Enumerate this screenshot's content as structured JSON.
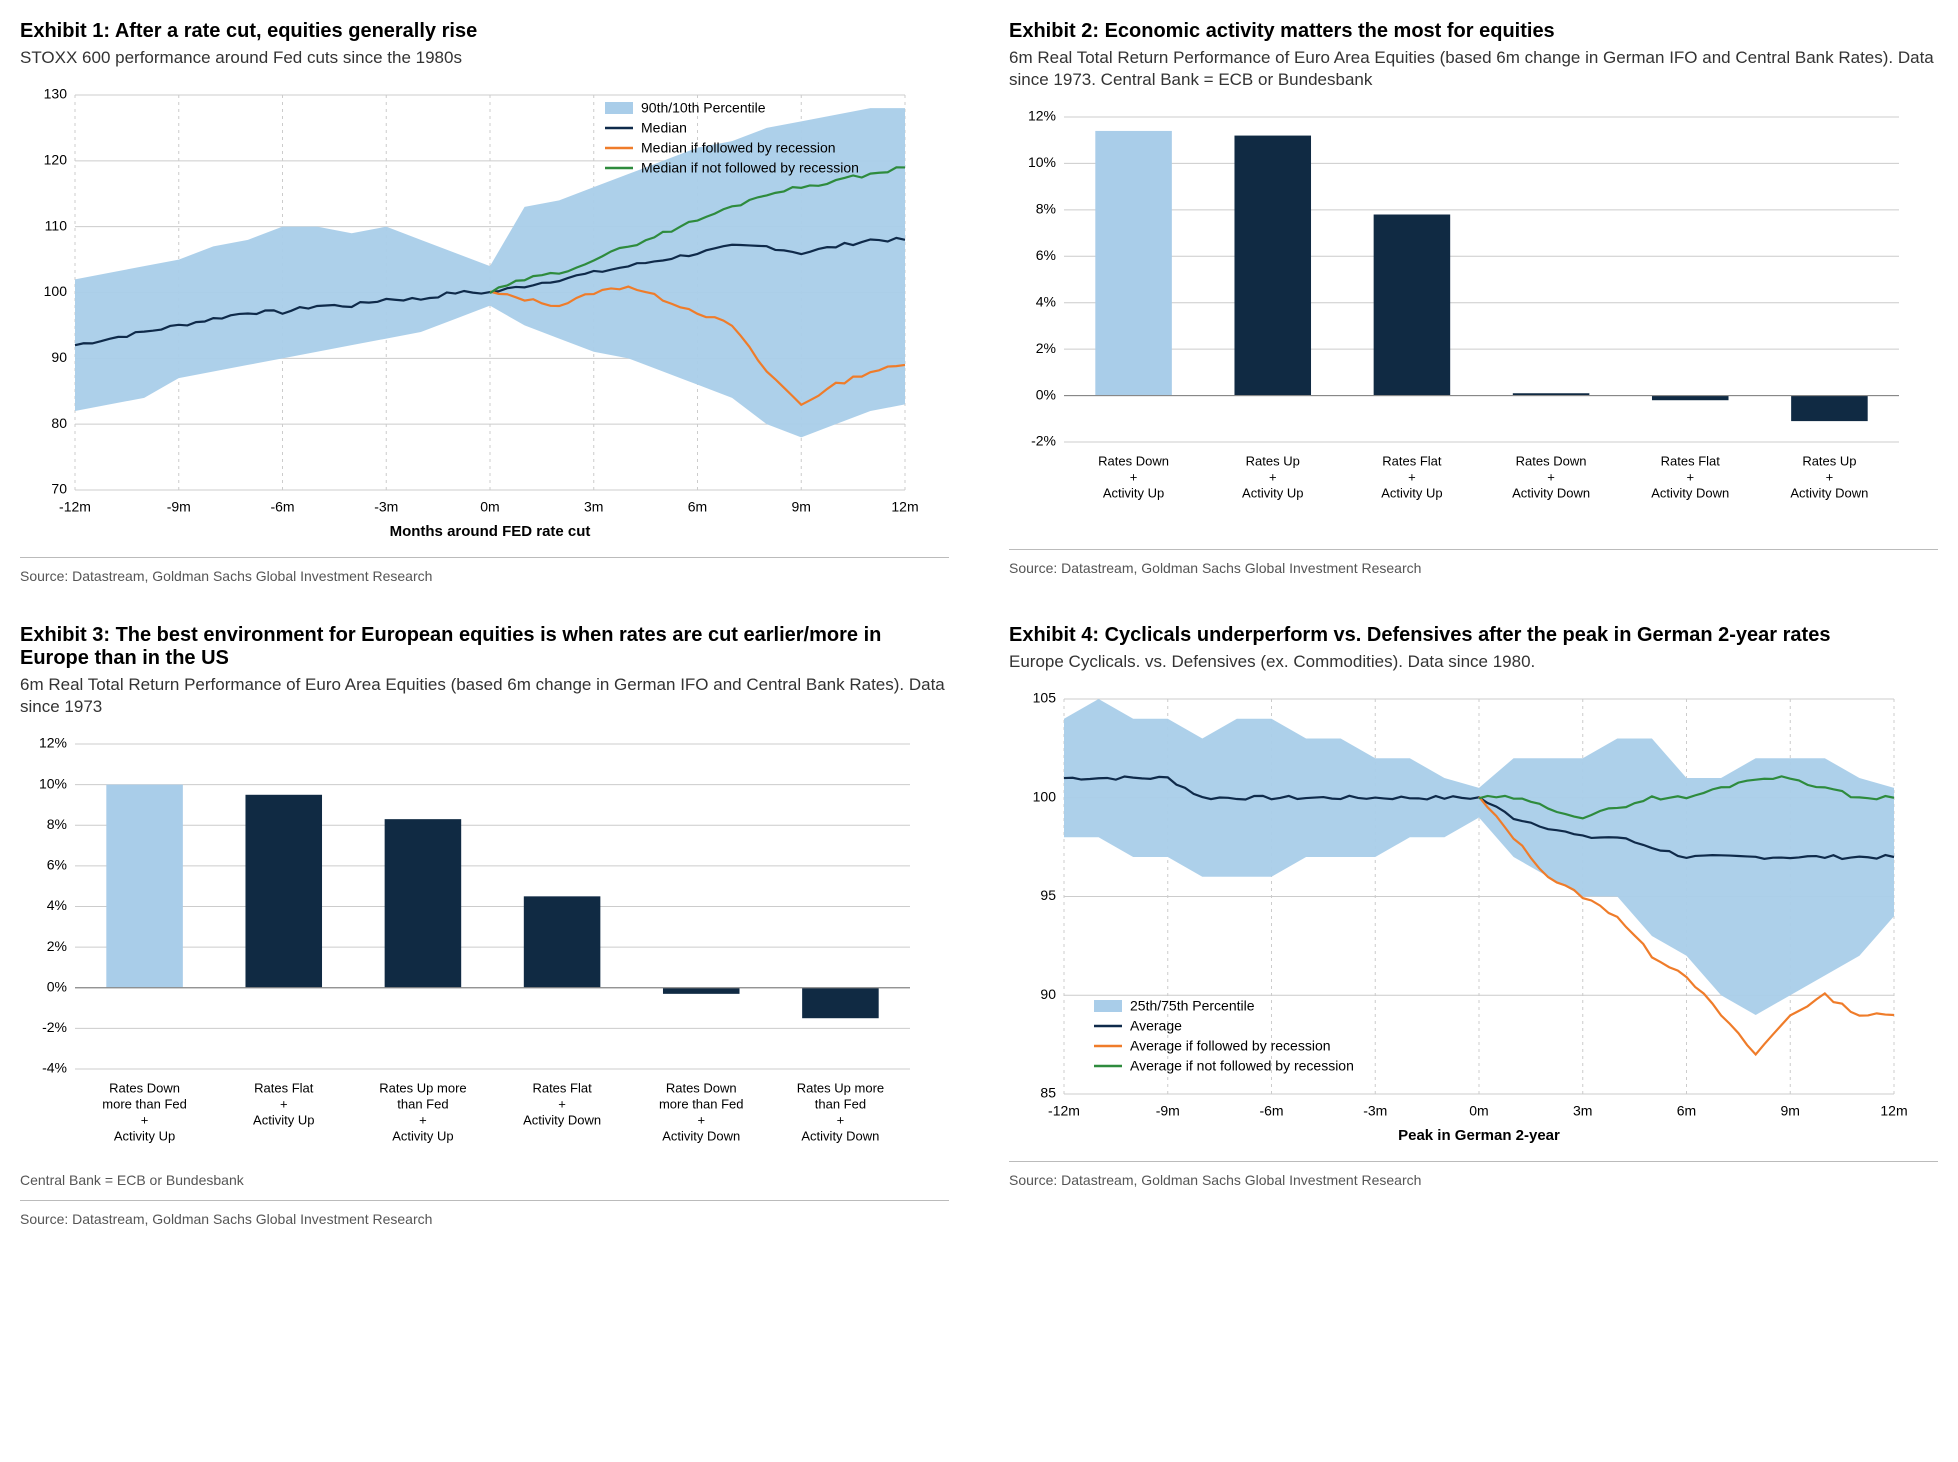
{
  "colors": {
    "band": "#a9cde9",
    "median": "#0f2a4a",
    "recession": "#ef7c2a",
    "norecession": "#2e8b3d",
    "barHighlight": "#a9cde9",
    "barDark": "#102a43",
    "grid": "#cccccc",
    "axis": "#000000",
    "bg": "#ffffff"
  },
  "ex1": {
    "title": "Exhibit 1: After a rate cut, equities generally rise",
    "subtitle": "STOXX 600 performance around Fed cuts since the 1980s",
    "source": "Source: Datastream, Goldman Sachs Global Investment Research",
    "type": "line_band",
    "xlim": [
      -12,
      12
    ],
    "ylim": [
      70,
      130
    ],
    "ytick_step": 10,
    "xtick_step": 3,
    "xlabel": "Months around FED rate cut",
    "xtick_labels": [
      "-12m",
      "-9m",
      "-6m",
      "-3m",
      "0m",
      "3m",
      "6m",
      "9m",
      "12m"
    ],
    "legend": [
      {
        "label": "90th/10th Percentile",
        "type": "band",
        "color": "#a9cde9"
      },
      {
        "label": "Median",
        "type": "line",
        "color": "#0f2a4a"
      },
      {
        "label": "Median if followed by recession",
        "type": "line",
        "color": "#ef7c2a"
      },
      {
        "label": "Median if not followed by recession",
        "type": "line",
        "color": "#2e8b3d"
      }
    ],
    "x": [
      -12,
      -11,
      -10,
      -9,
      -8,
      -7,
      -6,
      -5,
      -4,
      -3,
      -2,
      -1,
      0,
      1,
      2,
      3,
      4,
      5,
      6,
      7,
      8,
      9,
      10,
      11,
      12
    ],
    "band_upper": [
      102,
      103,
      104,
      105,
      107,
      108,
      110,
      110,
      109,
      110,
      108,
      106,
      104,
      113,
      114,
      116,
      118,
      120,
      122,
      123,
      125,
      126,
      127,
      128,
      128
    ],
    "band_lower": [
      82,
      83,
      84,
      87,
      88,
      89,
      90,
      91,
      92,
      93,
      94,
      96,
      98,
      95,
      93,
      91,
      90,
      88,
      86,
      84,
      80,
      78,
      80,
      82,
      83
    ],
    "median": [
      92,
      93,
      94,
      95,
      96,
      97,
      97,
      98,
      98,
      99,
      99,
      100,
      100,
      101,
      102,
      103,
      104,
      105,
      106,
      107,
      107,
      106,
      107,
      108,
      108
    ],
    "recession": [
      null,
      null,
      null,
      null,
      null,
      null,
      null,
      null,
      null,
      null,
      null,
      null,
      100,
      99,
      98,
      100,
      101,
      99,
      97,
      95,
      88,
      83,
      86,
      88,
      89
    ],
    "norecession": [
      null,
      null,
      null,
      null,
      null,
      null,
      null,
      null,
      null,
      null,
      null,
      null,
      100,
      102,
      103,
      105,
      107,
      109,
      111,
      113,
      115,
      116,
      117,
      118,
      119
    ],
    "line_width": 2.2,
    "title_fontsize": 20,
    "label_fontsize": 15
  },
  "ex2": {
    "title": "Exhibit 2: Economic activity matters the most for equities",
    "subtitle": "6m Real Total Return Performance of Euro Area Equities (based 6m change in German IFO and Central Bank Rates). Data since 1973. Central Bank = ECB or Bundesbank",
    "source": "Source: Datastream, Goldman Sachs Global Investment Research",
    "type": "bar",
    "ylim": [
      -2,
      12
    ],
    "ytick_step": 2,
    "y_suffix": "%",
    "bar_width": 0.55,
    "categories": [
      "Rates Down\n+\nActivity Up",
      "Rates Up\n+\nActivity Up",
      "Rates Flat\n+\nActivity Up",
      "Rates Down\n+\nActivity Down",
      "Rates Flat\n+\nActivity Down",
      "Rates Up\n+\nActivity Down"
    ],
    "values": [
      11.4,
      11.2,
      7.8,
      0.1,
      -0.2,
      -1.1
    ],
    "bar_colors": [
      "#a9cde9",
      "#102a43",
      "#102a43",
      "#102a43",
      "#102a43",
      "#102a43"
    ]
  },
  "ex3": {
    "title": "Exhibit 3: The best environment for European equities is when rates are cut earlier/more in Europe than in the US",
    "subtitle": "6m Real Total Return Performance of Euro Area Equities (based 6m change in German IFO and Central Bank Rates). Data since 1973",
    "note": "Central Bank = ECB or Bundesbank",
    "source": "Source: Datastream, Goldman Sachs Global Investment Research",
    "type": "bar",
    "ylim": [
      -4,
      12
    ],
    "ytick_step": 2,
    "y_suffix": "%",
    "bar_width": 0.55,
    "categories": [
      "Rates Down\nmore than Fed\n+\nActivity Up",
      "Rates Flat\n+\nActivity Up",
      "Rates Up more\nthan Fed\n+\nActivity Up",
      "Rates Flat\n+\nActivity Down",
      "Rates Down\nmore than Fed\n+\nActivity Down",
      "Rates Up more\nthan Fed\n+\nActivity Down"
    ],
    "values": [
      10.0,
      9.5,
      8.3,
      4.5,
      -0.3,
      -1.5
    ],
    "bar_colors": [
      "#a9cde9",
      "#102a43",
      "#102a43",
      "#102a43",
      "#102a43",
      "#102a43"
    ]
  },
  "ex4": {
    "title": "Exhibit 4: Cyclicals underperform vs. Defensives after the peak in German 2-year rates",
    "subtitle": "Europe Cyclicals. vs. Defensives (ex. Commodities). Data since 1980.",
    "source": "Source: Datastream, Goldman Sachs Global Investment Research",
    "type": "line_band",
    "xlim": [
      -12,
      12
    ],
    "ylim": [
      85,
      105
    ],
    "ytick_step": 5,
    "xtick_step": 3,
    "xlabel": "Peak in German 2-year",
    "xtick_labels": [
      "-12m",
      "-9m",
      "-6m",
      "-3m",
      "0m",
      "3m",
      "6m",
      "9m",
      "12m"
    ],
    "legend": [
      {
        "label": "25th/75th Percentile",
        "type": "band",
        "color": "#a9cde9"
      },
      {
        "label": "Average",
        "type": "line",
        "color": "#0f2a4a"
      },
      {
        "label": "Average if followed by recession",
        "type": "line",
        "color": "#ef7c2a"
      },
      {
        "label": "Average if not followed by recession",
        "type": "line",
        "color": "#2e8b3d"
      }
    ],
    "legend_pos": "bottom-left",
    "x": [
      -12,
      -11,
      -10,
      -9,
      -8,
      -7,
      -6,
      -5,
      -4,
      -3,
      -2,
      -1,
      0,
      1,
      2,
      3,
      4,
      5,
      6,
      7,
      8,
      9,
      10,
      11,
      12
    ],
    "band_upper": [
      104,
      105,
      104,
      104,
      103,
      104,
      104,
      103,
      103,
      102,
      102,
      101,
      100.5,
      102,
      102,
      102,
      103,
      103,
      101,
      101,
      102,
      102,
      102,
      101,
      100.5
    ],
    "band_lower": [
      98,
      98,
      97,
      97,
      96,
      96,
      96,
      97,
      97,
      97,
      98,
      98,
      99,
      97,
      96,
      95,
      95,
      93,
      92,
      90,
      89,
      90,
      91,
      92,
      94
    ],
    "median": [
      101,
      101,
      101,
      101,
      100,
      100,
      100,
      100,
      100,
      100,
      100,
      100,
      100,
      99,
      98.5,
      98,
      98,
      97.5,
      97,
      97,
      97,
      97,
      97,
      97,
      97
    ],
    "recession": [
      null,
      null,
      null,
      null,
      null,
      null,
      null,
      null,
      null,
      null,
      null,
      null,
      100,
      98,
      96,
      95,
      94,
      92,
      91,
      89,
      87,
      89,
      90,
      89,
      89
    ],
    "norecession": [
      null,
      null,
      null,
      null,
      null,
      null,
      null,
      null,
      null,
      null,
      null,
      null,
      100,
      100,
      99.5,
      99,
      99.5,
      100,
      100,
      100.5,
      101,
      101,
      100.5,
      100,
      100
    ],
    "line_width": 2.2
  }
}
